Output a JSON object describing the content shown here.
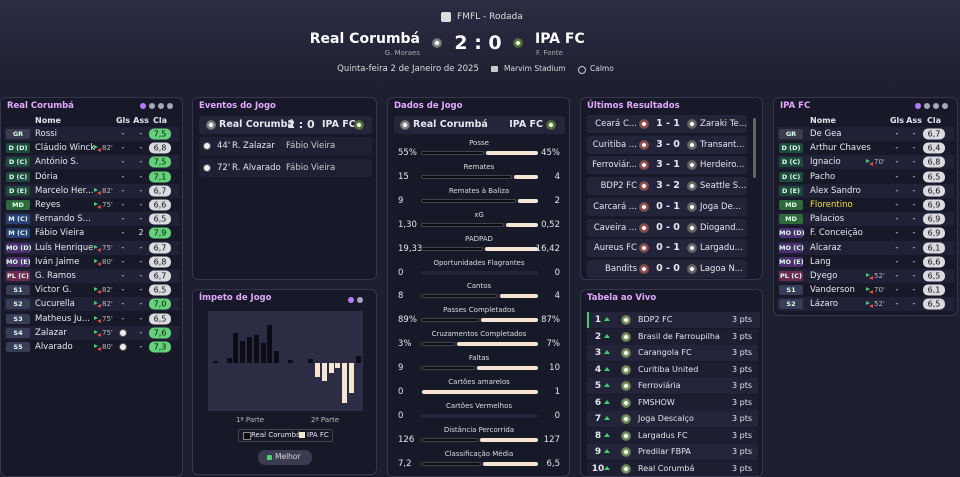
{
  "header": {
    "competition": "FMFL - Rodada",
    "home": "Real Corumbá",
    "score": "2 : 0",
    "away": "IPA FC",
    "home_scorer": "G. Moraes",
    "away_scorer": "F. Fonte",
    "date": "Quinta-feira 2 de Janeiro de 2025",
    "stadium": "Marvim Stadium",
    "weather": "Calmo"
  },
  "home_lineup": {
    "title": "Real Corumbá",
    "columns": [
      "Nome",
      "Gls",
      "Ass",
      "Cla"
    ],
    "players": [
      {
        "pos": "GR",
        "name": "Rossi",
        "gls": "-",
        "ass": "-",
        "rating": "7,5"
      },
      {
        "pos": "D (D)",
        "name": "Cláudio Winck",
        "sub": "82'",
        "gls": "-",
        "ass": "-",
        "rating": "6,8"
      },
      {
        "pos": "D (C)",
        "name": "António S.",
        "gls": "-",
        "ass": "-",
        "rating": "7,5"
      },
      {
        "pos": "D (C)",
        "name": "Dória",
        "gls": "-",
        "ass": "-",
        "rating": "7,1"
      },
      {
        "pos": "D (E)",
        "name": "Marcelo Her...",
        "sub": "82'",
        "gls": "-",
        "ass": "-",
        "rating": "6,7"
      },
      {
        "pos": "MD",
        "name": "Reyes",
        "sub": "75'",
        "gls": "-",
        "ass": "-",
        "rating": "6,6"
      },
      {
        "pos": "M (C)",
        "name": "Fernando S...",
        "gls": "-",
        "ass": "-",
        "rating": "6,5"
      },
      {
        "pos": "M (C)",
        "name": "Fábio Vieira",
        "gls": "-",
        "ass": "2",
        "rating": "7,9"
      },
      {
        "pos": "MO (D)",
        "name": "Luís Henrique",
        "sub": "75'",
        "gls": "-",
        "ass": "-",
        "rating": "6,7"
      },
      {
        "pos": "MO (E)",
        "name": "Iván Jaime",
        "sub": "80'",
        "gls": "-",
        "ass": "-",
        "rating": "6,8"
      },
      {
        "pos": "PL (C)",
        "name": "G. Ramos",
        "gls": "-",
        "ass": "-",
        "rating": "6,7"
      },
      {
        "pos": "S1",
        "name": "Victor G.",
        "sub": "82'",
        "gls": "-",
        "ass": "-",
        "rating": "6,5"
      },
      {
        "pos": "S2",
        "name": "Cucurella",
        "sub": "82'",
        "gls": "-",
        "ass": "-",
        "rating": "7,0"
      },
      {
        "pos": "S3",
        "name": "Matheus Ju...",
        "sub": "75'",
        "gls": "-",
        "ass": "-",
        "rating": "6,5"
      },
      {
        "pos": "S4",
        "name": "Zalazar",
        "sub": "75'",
        "scored": true,
        "ass": "-",
        "rating": "7,6"
      },
      {
        "pos": "S5",
        "name": "Alvarado",
        "sub": "80'",
        "scored": true,
        "ass": "-",
        "rating": "7,3"
      }
    ]
  },
  "away_lineup": {
    "title": "IPA FC",
    "columns": [
      "Nome",
      "Gls",
      "Ass",
      "Cla"
    ],
    "players": [
      {
        "pos": "GR",
        "name": "De Gea",
        "gls": "-",
        "ass": "-",
        "rating": "6,7"
      },
      {
        "pos": "D (D)",
        "name": "Arthur Chaves",
        "gls": "-",
        "ass": "-",
        "rating": "6,4"
      },
      {
        "pos": "D (C)",
        "name": "Ignacio",
        "sub": "70'",
        "gls": "-",
        "ass": "-",
        "rating": "6,8"
      },
      {
        "pos": "D (C)",
        "name": "Pacho",
        "gls": "-",
        "ass": "-",
        "rating": "6,5"
      },
      {
        "pos": "D (E)",
        "name": "Alex Sandro",
        "gls": "-",
        "ass": "-",
        "rating": "6,6"
      },
      {
        "pos": "MD",
        "name": "Florentino",
        "name_color": "#f0e23c",
        "gls": "-",
        "ass": "-",
        "rating": "6,9"
      },
      {
        "pos": "MD",
        "name": "Palacios",
        "gls": "-",
        "ass": "-",
        "rating": "6,9"
      },
      {
        "pos": "MO (D)",
        "name": "F. Conceição",
        "gls": "-",
        "ass": "-",
        "rating": "6,9"
      },
      {
        "pos": "MO (C)",
        "name": "Alcaraz",
        "gls": "-",
        "ass": "-",
        "rating": "6,1"
      },
      {
        "pos": "MO (E)",
        "name": "Lang",
        "gls": "-",
        "ass": "-",
        "rating": "6,6"
      },
      {
        "pos": "PL (C)",
        "name": "Dyego",
        "sub": "52'",
        "gls": "-",
        "ass": "-",
        "rating": "6,5"
      },
      {
        "pos": "S1",
        "name": "Vanderson",
        "sub": "70'",
        "gls": "-",
        "ass": "-",
        "rating": "6,1"
      },
      {
        "pos": "S2",
        "name": "Lázaro",
        "sub": "52'",
        "gls": "-",
        "ass": "-",
        "rating": "6,5"
      }
    ]
  },
  "events": {
    "title": "Eventos do Jogo",
    "goals": [
      {
        "minute": "44'",
        "scorer": "R. Zalazar",
        "assist": "Fábio Vieira"
      },
      {
        "minute": "72'",
        "scorer": "R. Alvarado",
        "assist": "Fábio Vieira"
      }
    ]
  },
  "momentum": {
    "title": "Ímpeto de Jogo",
    "first_half": "1ª Parte",
    "second_half": "2ª Parte",
    "legend": [
      "Real Corumbá",
      "IPA FC"
    ],
    "values": [
      2,
      0,
      5,
      30,
      22,
      26,
      28,
      20,
      38,
      12,
      0,
      3,
      0,
      0,
      4,
      -14,
      -18,
      -10,
      -5,
      -40,
      -30,
      7
    ],
    "button": "Melhor"
  },
  "stats": {
    "title": "Dados de Jogo",
    "rows": [
      {
        "label": "Posse",
        "home": 55,
        "away": 45,
        "home_label": "55%",
        "away_label": "45%"
      },
      {
        "label": "Remates",
        "home": 15,
        "away": 4
      },
      {
        "label": "Remates à Baliza",
        "home": 9,
        "away": 2
      },
      {
        "label": "xG",
        "home": 1.3,
        "away": 0.52,
        "home_label": "1,30",
        "away_label": "0,52"
      },
      {
        "label": "PADPAD",
        "home": 19.33,
        "away": 16.42,
        "home_label": "19,33",
        "away_label": "16,42"
      },
      {
        "label": "Oportunidades Flagrantes",
        "home": 0,
        "away": 0
      },
      {
        "label": "Cantos",
        "home": 8,
        "away": 4
      },
      {
        "label": "Passes Completados",
        "home": 89,
        "away": 87,
        "home_label": "89%",
        "away_label": "87%"
      },
      {
        "label": "Cruzamentos Completados",
        "home": 3,
        "away": 7,
        "home_label": "3%",
        "away_label": "7%"
      },
      {
        "label": "Faltas",
        "home": 9,
        "away": 10
      },
      {
        "label": "Cartões amarelos",
        "home": 0,
        "away": 1
      },
      {
        "label": "Cartões Vermelhos",
        "home": 0,
        "away": 0
      },
      {
        "label": "Distância Percorrida",
        "home": 126,
        "away": 127
      },
      {
        "label": "Classificação Média",
        "home": 7.2,
        "away": 6.5,
        "home_label": "7,2",
        "away_label": "6,5"
      }
    ]
  },
  "results": {
    "title": "Últimos Resultados",
    "matches": [
      {
        "home": "Ceará C...",
        "score": "1 - 1",
        "away": "Zaraki Te..."
      },
      {
        "home": "Curitiba ...",
        "score": "3 - 0",
        "away": "Transant..."
      },
      {
        "home": "Ferroviár...",
        "score": "3 - 1",
        "away": "Herdeiro..."
      },
      {
        "home": "BDP2 FC",
        "score": "3 - 2",
        "away": "Seattle S..."
      },
      {
        "home": "Carcará ...",
        "score": "0 - 1",
        "away": "Joga De..."
      },
      {
        "home": "Caveira ...",
        "score": "0 - 0",
        "away": "Diogand..."
      },
      {
        "home": "Aureus FC",
        "score": "0 - 1",
        "away": "Largadu..."
      },
      {
        "home": "Bandits",
        "score": "0 - 0",
        "away": "Lagoa N..."
      }
    ]
  },
  "table": {
    "title": "Tabela ao Vivo",
    "rows": [
      {
        "pos": 1,
        "team": "BDP2 FC",
        "pts": "3 pts"
      },
      {
        "pos": 2,
        "team": "Brasil de Farroupilha",
        "pts": "3 pts"
      },
      {
        "pos": 3,
        "team": "Carangola FC",
        "pts": "3 pts"
      },
      {
        "pos": 4,
        "team": "Curitiba United",
        "pts": "3 pts"
      },
      {
        "pos": 5,
        "team": "Ferroviária",
        "pts": "3 pts"
      },
      {
        "pos": 6,
        "team": "FMSHOW",
        "pts": "3 pts"
      },
      {
        "pos": 7,
        "team": "Joga Descalço",
        "pts": "3 pts"
      },
      {
        "pos": 8,
        "team": "Largadus FC",
        "pts": "3 pts"
      },
      {
        "pos": 9,
        "team": "Predilar FBPA",
        "pts": "3 pts"
      },
      {
        "pos": 10,
        "team": "Real Corumbá",
        "pts": "3 pts"
      }
    ]
  }
}
